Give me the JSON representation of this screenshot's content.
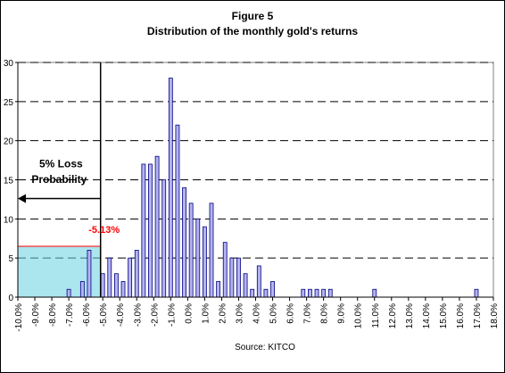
{
  "chart_data": {
    "type": "bar",
    "title": "Figure 5",
    "subtitle": "Distribution of the monthly gold's returns",
    "source": "Source:  KITCO",
    "ylim": [
      0,
      30
    ],
    "yticks": [
      0,
      5,
      10,
      15,
      20,
      25,
      30
    ],
    "xlim": [
      -10.0,
      18.0
    ],
    "xticks": [
      "-10.0%",
      "-9.0%",
      "-8.0%",
      "-7.0%",
      "-6.0%",
      "-5.0%",
      "-4.0%",
      "-3.0%",
      "-2.0%",
      "-1.0%",
      "0.0%",
      "1.0%",
      "2.0%",
      "3.0%",
      "4.0%",
      "5.0%",
      "6.0%",
      "7.0%",
      "8.0%",
      "9.0%",
      "10.0%",
      "11.0%",
      "12.0%",
      "13.0%",
      "14.0%",
      "15.0%",
      "16.0%",
      "17.0%",
      "18.0%"
    ],
    "grid": "horizontal dashed",
    "bar_color": "#b4b4f0",
    "bar_edge": "#000080",
    "x": [
      -7.0,
      -6.2,
      -5.8,
      -5.0,
      -4.6,
      -4.2,
      -3.8,
      -3.4,
      -3.0,
      -2.6,
      -2.2,
      -1.8,
      -1.4,
      -1.0,
      -0.6,
      -0.2,
      0.2,
      0.6,
      1.0,
      1.4,
      1.8,
      2.2,
      2.6,
      3.0,
      3.4,
      3.8,
      4.2,
      4.6,
      5.0,
      6.8,
      7.2,
      7.6,
      8.0,
      8.4,
      11.0,
      17.0
    ],
    "values": [
      1,
      2,
      6,
      3,
      5,
      3,
      2,
      5,
      6,
      17,
      17,
      18,
      15,
      28,
      22,
      14,
      12,
      10,
      9,
      12,
      2,
      7,
      5,
      5,
      3,
      1,
      4,
      1,
      2,
      1,
      1,
      1,
      1,
      1,
      1,
      1
    ],
    "annotations": {
      "loss_label_line1": "5% Loss",
      "loss_label_line2": "Probability",
      "threshold_value": -5.13,
      "threshold_label": "-5.13%",
      "shaded_region_top": 6.5
    }
  }
}
